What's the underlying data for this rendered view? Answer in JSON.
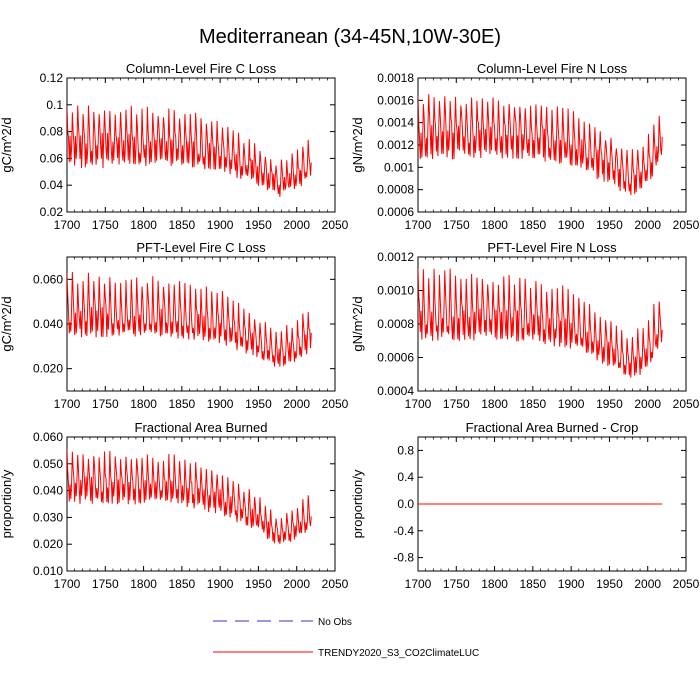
{
  "title": "Mediterranean (34-45N,10W-30E)",
  "colors": {
    "model": "#ff0000",
    "obs": "#3333cc",
    "axis": "#000000"
  },
  "legend": {
    "obs_label": "No Obs",
    "model_label": "TRENDY2020_S3_CO2ClimateLUC"
  },
  "chart_data": [
    {
      "type": "line",
      "title": "Column-Level Fire C Loss",
      "xlabel": "",
      "ylabel": "gC/m^2/d",
      "xlim": [
        1700,
        2050
      ],
      "ylim": [
        0.02,
        0.12
      ],
      "xticks": [
        1700,
        1750,
        1800,
        1850,
        1900,
        1950,
        2000,
        2050
      ],
      "xtick_labels": [
        "1700",
        "1750",
        "1800",
        "1850",
        "1900",
        "1950",
        "2000",
        "2050"
      ],
      "yticks": [
        0.02,
        0.04,
        0.06,
        0.08,
        0.1,
        0.12
      ],
      "ytick_labels": [
        "0.02",
        "0.04",
        "0.06",
        "0.08",
        "0.1",
        "0.12"
      ],
      "series": [
        {
          "name": "TRENDY2020_S3_CO2ClimateLUC",
          "x_range": [
            1700,
            2019
          ],
          "trend": [
            [
              1700,
              0.072
            ],
            [
              1840,
              0.071
            ],
            [
              1900,
              0.065
            ],
            [
              1950,
              0.052
            ],
            [
              1975,
              0.042
            ],
            [
              2000,
              0.048
            ],
            [
              2019,
              0.058
            ]
          ],
          "peak_amp": [
            [
              1700,
              0.03
            ],
            [
              1900,
              0.025
            ],
            [
              1970,
              0.015
            ],
            [
              2019,
              0.02
            ]
          ],
          "trough_amp": [
            [
              1700,
              0.02
            ],
            [
              1900,
              0.015
            ],
            [
              1970,
              0.012
            ],
            [
              2019,
              0.012
            ]
          ]
        }
      ]
    },
    {
      "type": "line",
      "title": "Column-Level Fire N Loss",
      "xlabel": "",
      "ylabel": "gN/m^2/d",
      "xlim": [
        1700,
        2050
      ],
      "ylim": [
        0.0006,
        0.0018
      ],
      "xticks": [
        1700,
        1750,
        1800,
        1850,
        1900,
        1950,
        2000,
        2050
      ],
      "xtick_labels": [
        "1700",
        "1750",
        "1800",
        "1850",
        "1900",
        "1950",
        "2000",
        "2050"
      ],
      "yticks": [
        0.0006,
        0.0008,
        0.001,
        0.0012,
        0.0014,
        0.0016,
        0.0018
      ],
      "ytick_labels": [
        "0.0006",
        "0.0008",
        "0.001",
        "0.0012",
        "0.0014",
        "0.0016",
        "0.0018"
      ],
      "series": [
        {
          "name": "TRENDY2020_S3_CO2ClimateLUC",
          "x_range": [
            1700,
            2019
          ],
          "trend": [
            [
              1700,
              0.00132
            ],
            [
              1840,
              0.0013
            ],
            [
              1900,
              0.00122
            ],
            [
              1950,
              0.00105
            ],
            [
              1975,
              0.00092
            ],
            [
              2000,
              0.001
            ],
            [
              2019,
              0.00122
            ]
          ],
          "peak_amp": [
            [
              1700,
              0.00035
            ],
            [
              1900,
              0.0003
            ],
            [
              1970,
              0.00022
            ],
            [
              2019,
              0.00035
            ]
          ],
          "trough_amp": [
            [
              1700,
              0.00025
            ],
            [
              1900,
              0.00022
            ],
            [
              1970,
              0.0002
            ],
            [
              2019,
              0.00015
            ]
          ]
        }
      ]
    },
    {
      "type": "line",
      "title": "PFT-Level Fire C Loss",
      "xlabel": "",
      "ylabel": "gC/m^2/d",
      "xlim": [
        1700,
        2050
      ],
      "ylim": [
        0.01,
        0.07
      ],
      "xticks": [
        1700,
        1750,
        1800,
        1850,
        1900,
        1950,
        2000,
        2050
      ],
      "xtick_labels": [
        "1700",
        "1750",
        "1800",
        "1850",
        "1900",
        "1950",
        "2000",
        "2050"
      ],
      "yticks": [
        0.02,
        0.04,
        0.06
      ],
      "ytick_labels": [
        "0.020",
        "0.040",
        "0.060"
      ],
      "series": [
        {
          "name": "TRENDY2020_S3_CO2ClimateLUC",
          "x_range": [
            1700,
            2019
          ],
          "trend": [
            [
              1700,
              0.044
            ],
            [
              1840,
              0.043
            ],
            [
              1900,
              0.04
            ],
            [
              1950,
              0.032
            ],
            [
              1975,
              0.027
            ],
            [
              2000,
              0.03
            ],
            [
              2019,
              0.036
            ]
          ],
          "peak_amp": [
            [
              1700,
              0.02
            ],
            [
              1900,
              0.017
            ],
            [
              1970,
              0.01
            ],
            [
              2019,
              0.014
            ]
          ],
          "trough_amp": [
            [
              1700,
              0.01
            ],
            [
              1900,
              0.009
            ],
            [
              1970,
              0.007
            ],
            [
              2019,
              0.008
            ]
          ]
        }
      ]
    },
    {
      "type": "line",
      "title": "PFT-Level Fire N Loss",
      "xlabel": "",
      "ylabel": "gN/m^2/d",
      "xlim": [
        1700,
        2050
      ],
      "ylim": [
        0.0004,
        0.0012
      ],
      "xticks": [
        1700,
        1750,
        1800,
        1850,
        1900,
        1950,
        2000,
        2050
      ],
      "xtick_labels": [
        "1700",
        "1750",
        "1800",
        "1850",
        "1900",
        "1950",
        "2000",
        "2050"
      ],
      "yticks": [
        0.0004,
        0.0006,
        0.0008,
        0.001,
        0.0012
      ],
      "ytick_labels": [
        "0.0004",
        "0.0006",
        "0.0008",
        "0.0010",
        "0.0012"
      ],
      "series": [
        {
          "name": "TRENDY2020_S3_CO2ClimateLUC",
          "x_range": [
            1700,
            2019
          ],
          "trend": [
            [
              1700,
              0.00085
            ],
            [
              1840,
              0.00083
            ],
            [
              1900,
              0.00078
            ],
            [
              1950,
              0.00065
            ],
            [
              1975,
              0.00056
            ],
            [
              2000,
              0.00062
            ],
            [
              2019,
              0.0008
            ]
          ],
          "peak_amp": [
            [
              1700,
              0.0003
            ],
            [
              1900,
              0.00025
            ],
            [
              1970,
              0.00018
            ],
            [
              2019,
              0.00025
            ]
          ],
          "trough_amp": [
            [
              1700,
              0.00015
            ],
            [
              1900,
              0.00013
            ],
            [
              1970,
              0.0001
            ],
            [
              2019,
              0.0001
            ]
          ]
        }
      ]
    },
    {
      "type": "line",
      "title": "Fractional Area Burned",
      "xlabel": "",
      "ylabel": "proportion/y",
      "xlim": [
        1700,
        2050
      ],
      "ylim": [
        0.01,
        0.06
      ],
      "xticks": [
        1700,
        1750,
        1800,
        1850,
        1900,
        1950,
        2000,
        2050
      ],
      "xtick_labels": [
        "1700",
        "1750",
        "1800",
        "1850",
        "1900",
        "1950",
        "2000",
        "2050"
      ],
      "yticks": [
        0.01,
        0.02,
        0.03,
        0.04,
        0.05,
        0.06
      ],
      "ytick_labels": [
        "0.010",
        "0.020",
        "0.030",
        "0.040",
        "0.050",
        "0.060"
      ],
      "series": [
        {
          "name": "TRENDY2020_S3_CO2ClimateLUC",
          "x_range": [
            1700,
            2019
          ],
          "trend": [
            [
              1700,
              0.043
            ],
            [
              1840,
              0.042
            ],
            [
              1900,
              0.038
            ],
            [
              1950,
              0.03
            ],
            [
              1975,
              0.024
            ],
            [
              2000,
              0.026
            ],
            [
              2019,
              0.03
            ]
          ],
          "peak_amp": [
            [
              1700,
              0.013
            ],
            [
              1900,
              0.011
            ],
            [
              1970,
              0.007
            ],
            [
              2019,
              0.01
            ]
          ],
          "trough_amp": [
            [
              1700,
              0.008
            ],
            [
              1900,
              0.007
            ],
            [
              1970,
              0.005
            ],
            [
              2019,
              0.004
            ]
          ]
        }
      ]
    },
    {
      "type": "line",
      "title": "Fractional Area Burned - Crop",
      "xlabel": "",
      "ylabel": "proportion/y",
      "xlim": [
        1700,
        2050
      ],
      "ylim": [
        -1.0,
        1.0
      ],
      "xticks": [
        1700,
        1750,
        1800,
        1850,
        1900,
        1950,
        2000,
        2050
      ],
      "xtick_labels": [
        "1700",
        "1750",
        "1800",
        "1850",
        "1900",
        "1950",
        "2000",
        "2050"
      ],
      "yticks": [
        -0.8,
        -0.4,
        0.0,
        0.4,
        0.8
      ],
      "ytick_labels": [
        "-0.8",
        "-0.4",
        "0.0",
        "0.4",
        "0.8"
      ],
      "series": [
        {
          "name": "TRENDY2020_S3_CO2ClimateLUC",
          "x_range": [
            1700,
            2019
          ],
          "constant": 0.0
        }
      ]
    }
  ]
}
